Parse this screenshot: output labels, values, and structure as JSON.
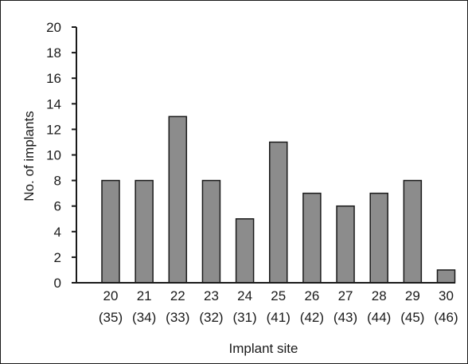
{
  "chart_data": {
    "type": "bar",
    "title": "",
    "xlabel": "Implant site",
    "ylabel": "No. of implants",
    "categories": [
      {
        "line1": "20",
        "line2": "(35)"
      },
      {
        "line1": "21",
        "line2": "(34)"
      },
      {
        "line1": "22",
        "line2": "(33)"
      },
      {
        "line1": "23",
        "line2": "(32)"
      },
      {
        "line1": "24",
        "line2": "(31)"
      },
      {
        "line1": "25",
        "line2": "(41)"
      },
      {
        "line1": "26",
        "line2": "(42)"
      },
      {
        "line1": "27",
        "line2": "(43)"
      },
      {
        "line1": "28",
        "line2": "(44)"
      },
      {
        "line1": "29",
        "line2": "(45)"
      },
      {
        "line1": "30",
        "line2": "(46)"
      }
    ],
    "values": [
      8,
      8,
      13,
      8,
      5,
      11,
      7,
      6,
      7,
      8,
      1
    ],
    "ylim": [
      0,
      20
    ],
    "yticks": [
      0,
      2,
      4,
      6,
      8,
      10,
      12,
      14,
      16,
      18,
      20
    ],
    "grid": false,
    "legend": "none",
    "bar_color": "#8c8c8c",
    "bar_edge_color": "#1a1a1a"
  }
}
